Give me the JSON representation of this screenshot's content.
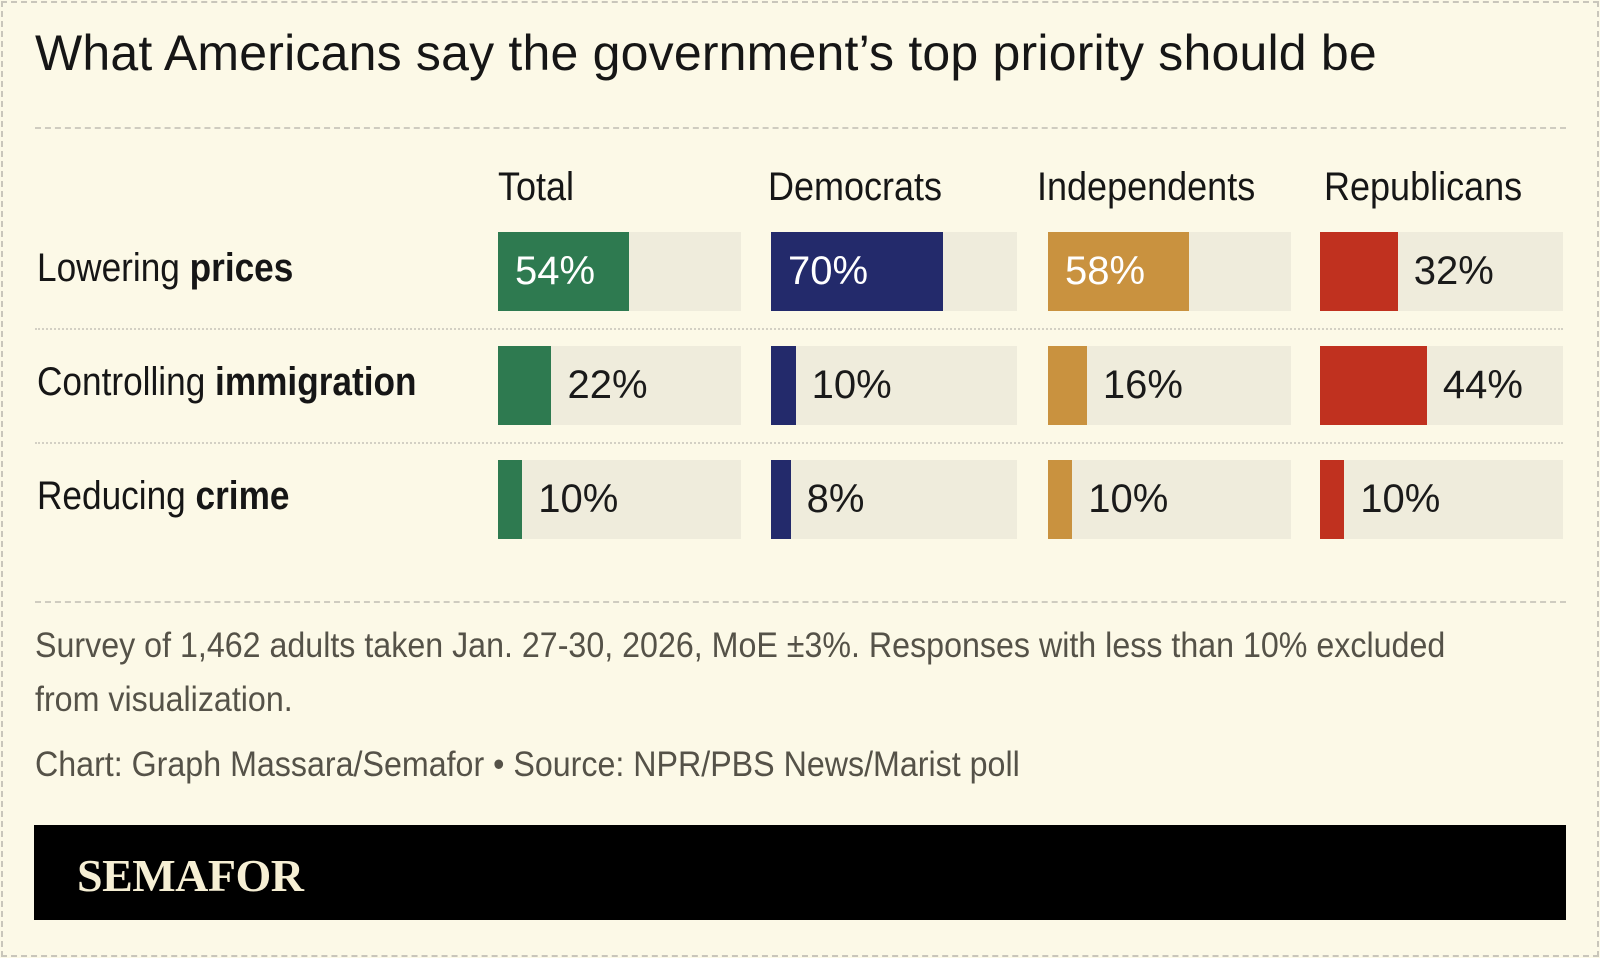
{
  "title": "What Americans say the government’s top priority should be",
  "chart_data": {
    "type": "bar",
    "title": "What Americans say the government’s top priority should be",
    "groups": [
      "Total",
      "Democrats",
      "Independents",
      "Republicans"
    ],
    "group_colors": [
      "#2e7a50",
      "#232a6b",
      "#c9923f",
      "#c0311f"
    ],
    "track_color": "#efecdc",
    "categories": [
      {
        "prefix": "Lowering",
        "bold": "prices"
      },
      {
        "prefix": "Controlling",
        "bold": "immigration"
      },
      {
        "prefix": "Reducing",
        "bold": "crime"
      }
    ],
    "values": [
      [
        54,
        70,
        58,
        32
      ],
      [
        22,
        10,
        16,
        44
      ],
      [
        10,
        8,
        10,
        10
      ]
    ],
    "unit": "%",
    "xlim": [
      0,
      100
    ]
  },
  "notes": {
    "survey": "Survey of 1,462 adults taken Jan. 27-30, 2026, MoE ±3%. Responses with less than 10% excluded from visualization.",
    "credit": "Chart: Graph Massara/Semafor • Source: NPR/PBS News/Marist poll"
  },
  "brand": {
    "logo": "SEMAFOR"
  }
}
